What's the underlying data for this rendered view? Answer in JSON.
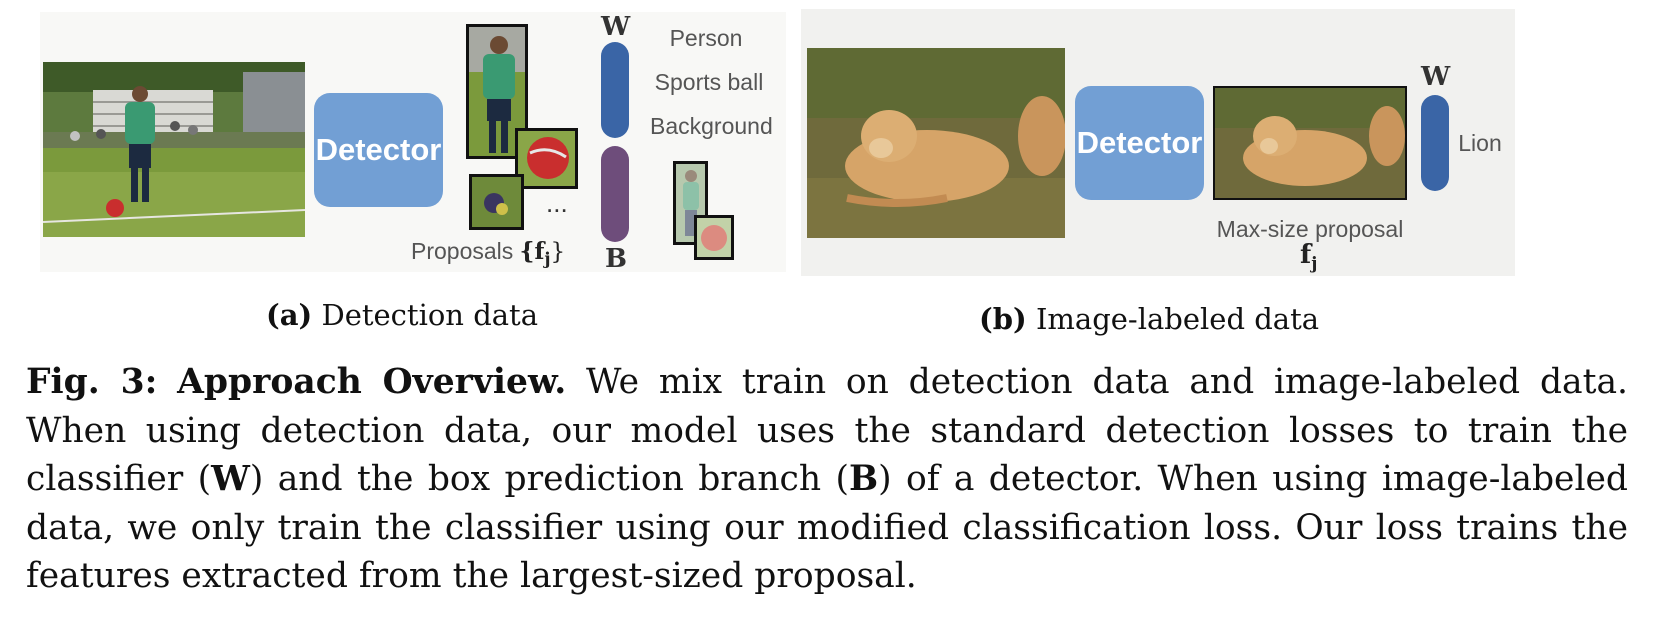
{
  "panel_a": {
    "detector_label": "Detector",
    "proposals_label": "Proposals",
    "proposals_symbol": "{f",
    "proposals_sub": "j",
    "proposals_close": "}",
    "ellipsis": "...",
    "w_label": "W",
    "b_label": "B",
    "classes": [
      "Person",
      "Sports ball",
      "Background"
    ],
    "w_color": "#3a65a6",
    "b_color": "#6e4d7b"
  },
  "panel_b": {
    "detector_label": "Detector",
    "proposal_label": "Max-size proposal",
    "f_label": "f",
    "f_sub": "j",
    "w_label": "W",
    "class_label": "Lion",
    "w_color": "#3a65a6"
  },
  "subcaptions": {
    "a_tag": "(a)",
    "a_text": "Detection data",
    "b_tag": "(b)",
    "b_text": "Image-labeled data"
  },
  "caption": {
    "fig_label": "Fig. 3:",
    "title": "Approach Overview.",
    "body": "We mix train on detection data and image-labeled data. When using detection data, our model uses the standard detection losses to train the classifier (",
    "w": "W",
    "mid": ") and the box prediction branch (",
    "b": "B",
    "end": ") of a detector. When using image-labeled data, we only train the classifier using our modified classification loss. Our loss trains the features extracted from the largest-sized proposal."
  },
  "colors": {
    "detector_blue": "#729fd4",
    "panel_bg": "#f8f8f6"
  }
}
